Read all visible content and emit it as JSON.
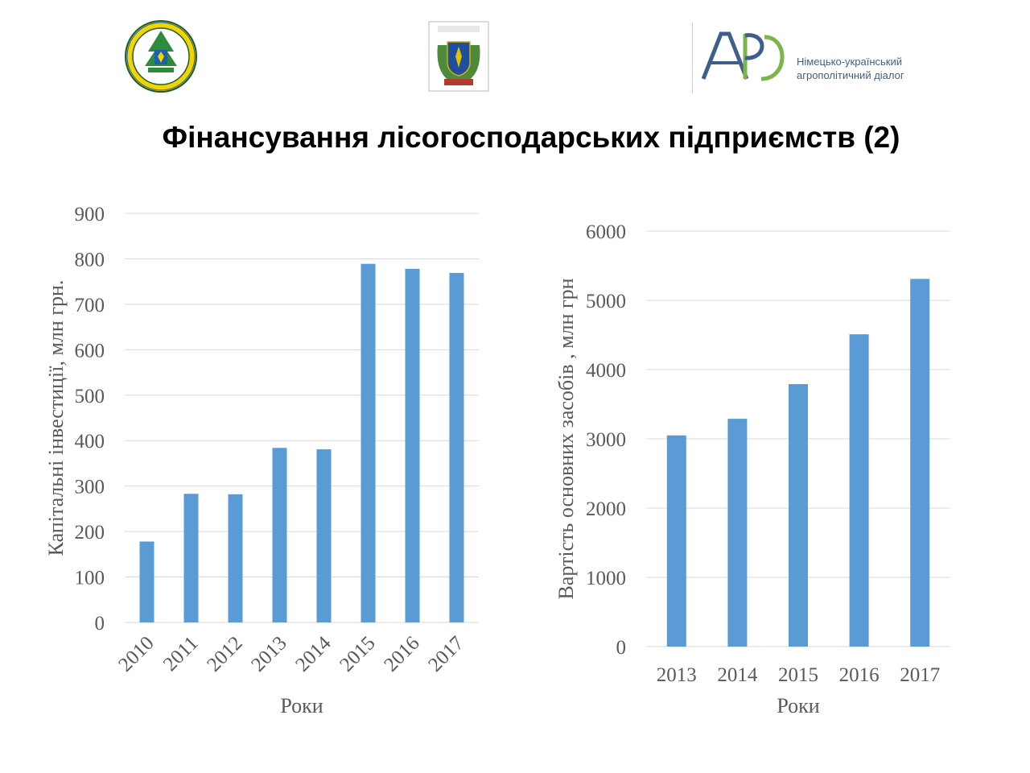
{
  "title": "Фінансування лісогосподарських підприємств (2)",
  "logos": {
    "left": "logo-forestry-university-seal",
    "center": "logo-coat-of-arms-emblem",
    "apd": {
      "letters": "APD",
      "line1": "Німецько-український",
      "line2": "агрополітичний діалог"
    }
  },
  "colors": {
    "bar": "#5b9bd5",
    "grid": "#d9d9d9",
    "text": "#595959",
    "apd_blue": "#3f5f8a",
    "apd_green": "#7ab648"
  },
  "chart_data": [
    {
      "type": "bar",
      "categories": [
        "2010",
        "2011",
        "2012",
        "2013",
        "2014",
        "2015",
        "2016",
        "2017"
      ],
      "values": [
        178,
        283,
        282,
        384,
        381,
        789,
        778,
        769
      ],
      "xlabel": "Роки",
      "ylabel": "Капітальні інвестиції, млн грн.",
      "ylim": [
        0,
        900
      ],
      "yticks": [
        "0",
        "100",
        "200",
        "300",
        "400",
        "500",
        "600",
        "700",
        "800",
        "900"
      ],
      "grid": true,
      "x_tick_rotation": "rotated"
    },
    {
      "type": "bar",
      "categories": [
        "2013",
        "2014",
        "2015",
        "2016",
        "2017"
      ],
      "values": [
        3050,
        3290,
        3790,
        4510,
        5310
      ],
      "xlabel": "Роки",
      "ylabel": "Вартість основних засобів , млн грн",
      "ylim": [
        0,
        6000
      ],
      "yticks": [
        "0",
        "1000",
        "2000",
        "3000",
        "4000",
        "5000",
        "6000"
      ],
      "grid": true,
      "x_tick_rotation": "none"
    }
  ]
}
